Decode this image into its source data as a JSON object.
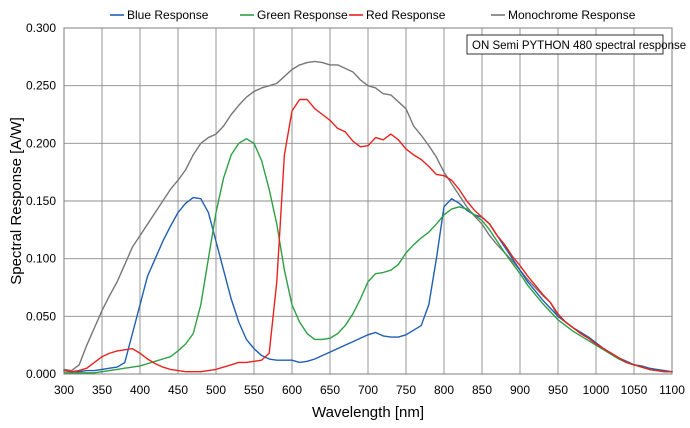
{
  "chart_data": {
    "type": "line",
    "title": "",
    "xlabel": "Wavelength [nm]",
    "ylabel": "Spectral Response [A/W]",
    "xlim": [
      300,
      1100
    ],
    "ylim": [
      0,
      0.3
    ],
    "grid": true,
    "legend_position": "top",
    "annotation": "ON Semi PYTHON 480 spectral response",
    "x_ticks": [
      "300",
      "350",
      "400",
      "450",
      "500",
      "550",
      "600",
      "650",
      "700",
      "750",
      "800",
      "850",
      "900",
      "950",
      "1000",
      "1050",
      "1100"
    ],
    "y_ticks": [
      "0.000",
      "0.050",
      "0.100",
      "0.150",
      "0.200",
      "0.250",
      "0.300"
    ],
    "series": [
      {
        "name": "Blue Response",
        "color": "#1f5fb4",
        "x": [
          300,
          310,
          320,
          330,
          340,
          350,
          360,
          370,
          380,
          390,
          400,
          410,
          420,
          430,
          440,
          450,
          460,
          470,
          480,
          490,
          500,
          510,
          520,
          530,
          540,
          550,
          560,
          570,
          580,
          590,
          600,
          610,
          620,
          630,
          640,
          650,
          660,
          670,
          680,
          690,
          700,
          710,
          720,
          730,
          740,
          750,
          760,
          770,
          780,
          790,
          800,
          810,
          820,
          830,
          840,
          850,
          860,
          870,
          880,
          890,
          900,
          910,
          920,
          930,
          940,
          950,
          960,
          970,
          980,
          990,
          1000,
          1010,
          1020,
          1030,
          1040,
          1050,
          1060,
          1070,
          1080,
          1090,
          1100
        ],
        "y": [
          0.003,
          0.002,
          0.002,
          0.003,
          0.003,
          0.004,
          0.005,
          0.006,
          0.01,
          0.035,
          0.06,
          0.085,
          0.1,
          0.115,
          0.128,
          0.14,
          0.148,
          0.153,
          0.152,
          0.14,
          0.115,
          0.09,
          0.065,
          0.045,
          0.03,
          0.022,
          0.016,
          0.013,
          0.012,
          0.012,
          0.012,
          0.01,
          0.011,
          0.013,
          0.016,
          0.019,
          0.022,
          0.025,
          0.028,
          0.031,
          0.034,
          0.036,
          0.033,
          0.032,
          0.032,
          0.034,
          0.038,
          0.042,
          0.06,
          0.1,
          0.145,
          0.152,
          0.148,
          0.142,
          0.138,
          0.136,
          0.13,
          0.12,
          0.11,
          0.1,
          0.09,
          0.08,
          0.072,
          0.064,
          0.057,
          0.05,
          0.045,
          0.04,
          0.036,
          0.032,
          0.027,
          0.022,
          0.018,
          0.014,
          0.011,
          0.008,
          0.007,
          0.005,
          0.004,
          0.003,
          0.002
        ]
      },
      {
        "name": "Green Response",
        "color": "#2ea043",
        "x": [
          300,
          310,
          320,
          330,
          340,
          350,
          360,
          370,
          380,
          390,
          400,
          410,
          420,
          430,
          440,
          450,
          460,
          470,
          480,
          490,
          500,
          510,
          520,
          530,
          540,
          550,
          560,
          570,
          580,
          590,
          600,
          610,
          620,
          630,
          640,
          650,
          660,
          670,
          680,
          690,
          700,
          710,
          720,
          730,
          740,
          750,
          760,
          770,
          780,
          790,
          800,
          810,
          820,
          830,
          840,
          850,
          860,
          870,
          880,
          890,
          900,
          910,
          920,
          930,
          940,
          950,
          960,
          970,
          980,
          990,
          1000,
          1010,
          1020,
          1030,
          1040,
          1050,
          1060,
          1070,
          1080,
          1090,
          1100
        ],
        "y": [
          0.001,
          0.001,
          0.001,
          0.001,
          0.001,
          0.002,
          0.003,
          0.004,
          0.005,
          0.006,
          0.007,
          0.009,
          0.011,
          0.013,
          0.015,
          0.02,
          0.026,
          0.035,
          0.06,
          0.1,
          0.14,
          0.17,
          0.19,
          0.2,
          0.204,
          0.2,
          0.185,
          0.16,
          0.13,
          0.09,
          0.06,
          0.045,
          0.035,
          0.03,
          0.03,
          0.031,
          0.035,
          0.042,
          0.052,
          0.065,
          0.08,
          0.087,
          0.088,
          0.09,
          0.095,
          0.105,
          0.112,
          0.118,
          0.123,
          0.13,
          0.138,
          0.143,
          0.145,
          0.143,
          0.138,
          0.133,
          0.125,
          0.115,
          0.105,
          0.096,
          0.087,
          0.077,
          0.069,
          0.061,
          0.054,
          0.047,
          0.042,
          0.037,
          0.033,
          0.029,
          0.025,
          0.021,
          0.017,
          0.013,
          0.01,
          0.008,
          0.006,
          0.004,
          0.003,
          0.002,
          0.002
        ]
      },
      {
        "name": "Red Response",
        "color": "#e8231f",
        "x": [
          300,
          310,
          320,
          330,
          340,
          350,
          360,
          370,
          380,
          390,
          400,
          410,
          420,
          430,
          440,
          450,
          460,
          470,
          480,
          490,
          500,
          510,
          520,
          530,
          540,
          550,
          560,
          570,
          580,
          590,
          600,
          610,
          620,
          630,
          640,
          650,
          660,
          670,
          680,
          690,
          700,
          710,
          720,
          730,
          740,
          750,
          760,
          770,
          780,
          790,
          800,
          810,
          820,
          830,
          840,
          850,
          860,
          870,
          880,
          890,
          900,
          910,
          920,
          930,
          940,
          950,
          960,
          970,
          980,
          990,
          1000,
          1010,
          1020,
          1030,
          1040,
          1050,
          1060,
          1070,
          1080,
          1090,
          1100
        ],
        "y": [
          0.003,
          0.002,
          0.003,
          0.005,
          0.01,
          0.015,
          0.018,
          0.02,
          0.021,
          0.022,
          0.018,
          0.013,
          0.009,
          0.006,
          0.004,
          0.003,
          0.002,
          0.002,
          0.002,
          0.003,
          0.004,
          0.006,
          0.008,
          0.01,
          0.01,
          0.011,
          0.012,
          0.018,
          0.08,
          0.19,
          0.228,
          0.238,
          0.238,
          0.23,
          0.225,
          0.22,
          0.213,
          0.21,
          0.202,
          0.197,
          0.198,
          0.205,
          0.203,
          0.208,
          0.203,
          0.195,
          0.19,
          0.186,
          0.18,
          0.173,
          0.172,
          0.168,
          0.16,
          0.15,
          0.142,
          0.136,
          0.13,
          0.12,
          0.112,
          0.102,
          0.094,
          0.085,
          0.077,
          0.069,
          0.062,
          0.052,
          0.045,
          0.04,
          0.035,
          0.031,
          0.026,
          0.022,
          0.018,
          0.014,
          0.01,
          0.008,
          0.006,
          0.004,
          0.003,
          0.002,
          0.002
        ]
      },
      {
        "name": "Monochrome Response",
        "color": "#777777",
        "x": [
          300,
          310,
          320,
          330,
          340,
          350,
          360,
          370,
          380,
          390,
          400,
          410,
          420,
          430,
          440,
          450,
          460,
          470,
          480,
          490,
          500,
          510,
          520,
          530,
          540,
          550,
          560,
          570,
          580,
          590,
          600,
          610,
          620,
          630,
          640,
          650,
          660,
          670,
          680,
          690,
          700,
          710,
          720,
          730,
          740,
          750,
          760,
          770,
          780,
          790,
          800,
          810,
          820,
          830,
          840,
          850,
          860,
          870,
          880,
          890,
          900,
          910,
          920,
          930,
          940,
          950,
          960,
          970,
          980,
          990,
          1000,
          1010,
          1020,
          1030,
          1040,
          1050,
          1060,
          1070,
          1080,
          1090,
          1100
        ],
        "y": [
          0.004,
          0.003,
          0.008,
          0.025,
          0.04,
          0.055,
          0.068,
          0.08,
          0.095,
          0.11,
          0.12,
          0.13,
          0.14,
          0.15,
          0.16,
          0.168,
          0.177,
          0.19,
          0.2,
          0.205,
          0.208,
          0.215,
          0.225,
          0.233,
          0.24,
          0.245,
          0.248,
          0.25,
          0.252,
          0.258,
          0.264,
          0.268,
          0.27,
          0.271,
          0.27,
          0.268,
          0.268,
          0.265,
          0.262,
          0.255,
          0.25,
          0.248,
          0.243,
          0.242,
          0.236,
          0.23,
          0.215,
          0.207,
          0.198,
          0.188,
          0.175,
          0.165,
          0.155,
          0.145,
          0.137,
          0.13,
          0.12,
          0.112,
          0.105,
          0.098,
          0.09,
          0.082,
          0.075,
          0.068,
          0.062,
          0.05,
          0.045,
          0.04,
          0.036,
          0.032,
          0.027,
          0.022,
          0.018,
          0.014,
          0.01,
          0.008,
          0.006,
          0.004,
          0.003,
          0.002,
          0.002
        ]
      }
    ]
  }
}
